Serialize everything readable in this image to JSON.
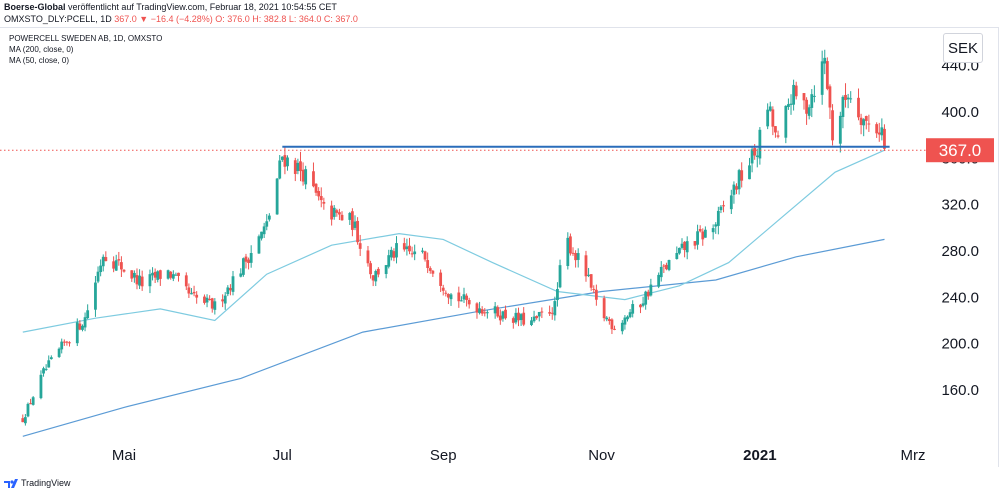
{
  "header": {
    "author": "Boerse-Global",
    "published": "veröffentlicht auf TradingView.com, Februar 18, 2021 10:54:55 CET",
    "symbol": "OMXSTO_DLY:PCELL, 1D",
    "last": "367.0",
    "change": "−16.4 (−4.28%)",
    "ohlc": "O: 376.0 H: 382.8 L: 364.0 C: 367.0"
  },
  "legend": {
    "title": "POWERCELL SWEDEN AB, 1D, OMXSTO",
    "ma200": "MA (200, close, 0)",
    "ma50": "MA (50, close, 0)"
  },
  "currency": "SEK",
  "footer": {
    "brand": "TradingView"
  },
  "colors": {
    "up": "#26a69a",
    "down": "#ef5350",
    "ma50": "#7ecbe0",
    "ma200": "#5b9bd5",
    "resistance": "#2a6dba",
    "last_line": "#ef5350"
  },
  "chart_data": {
    "type": "candlestick",
    "title": "POWERCELL SWEDEN AB, 1D, OMXSTO",
    "currency": "SEK",
    "y_ticks": [
      "160.0",
      "200.0",
      "240.0",
      "280.0",
      "320.0",
      "360.0",
      "400.0",
      "440.0"
    ],
    "ylim": [
      112,
      455
    ],
    "x_labels": [
      {
        "label": "Mai",
        "date": "2020-05-01"
      },
      {
        "label": "Jul",
        "date": "2020-07-01"
      },
      {
        "label": "Sep",
        "date": "2020-09-01"
      },
      {
        "label": "Nov",
        "date": "2020-11-01"
      },
      {
        "label": "2021",
        "date": "2021-01-01"
      },
      {
        "label": "Mrz",
        "date": "2021-03-01"
      }
    ],
    "last_price": 367.0,
    "last_label": "367.0",
    "resistance": {
      "value": 370,
      "from": "2020-07-01",
      "to": "2021-02-20"
    },
    "close_path": [
      [
        "2020-03-23",
        135
      ],
      [
        "2020-03-31",
        175
      ],
      [
        "2020-04-08",
        200
      ],
      [
        "2020-04-16",
        222
      ],
      [
        "2020-04-23",
        278
      ],
      [
        "2020-04-29",
        268
      ],
      [
        "2020-05-08",
        252
      ],
      [
        "2020-05-18",
        262
      ],
      [
        "2020-05-27",
        240
      ],
      [
        "2020-06-05",
        232
      ],
      [
        "2020-06-15",
        265
      ],
      [
        "2020-06-25",
        302
      ],
      [
        "2020-07-01",
        362
      ],
      [
        "2020-07-09",
        348
      ],
      [
        "2020-07-17",
        315
      ],
      [
        "2020-07-28",
        305
      ],
      [
        "2020-08-05",
        258
      ],
      [
        "2020-08-14",
        280
      ],
      [
        "2020-08-25",
        275
      ],
      [
        "2020-09-04",
        242
      ],
      [
        "2020-09-14",
        232
      ],
      [
        "2020-09-24",
        225
      ],
      [
        "2020-10-05",
        218
      ],
      [
        "2020-10-14",
        232
      ],
      [
        "2020-10-16",
        262
      ],
      [
        "2020-10-19",
        288
      ],
      [
        "2020-10-26",
        260
      ],
      [
        "2020-10-31",
        228
      ],
      [
        "2020-11-06",
        215
      ],
      [
        "2020-11-16",
        235
      ],
      [
        "2020-11-24",
        262
      ],
      [
        "2020-12-04",
        285
      ],
      [
        "2020-12-14",
        300
      ],
      [
        "2020-12-23",
        338
      ],
      [
        "2020-12-31",
        368
      ],
      [
        "2021-01-04",
        405
      ],
      [
        "2021-01-08",
        372
      ],
      [
        "2021-01-13",
        415
      ],
      [
        "2021-01-19",
        405
      ],
      [
        "2021-01-26",
        445
      ],
      [
        "2021-01-29",
        380
      ],
      [
        "2021-02-04",
        418
      ],
      [
        "2021-02-11",
        390
      ],
      [
        "2021-02-17",
        385
      ],
      [
        "2021-02-18",
        367
      ]
    ],
    "ma50": [
      [
        "2020-03-23",
        210
      ],
      [
        "2020-04-20",
        222
      ],
      [
        "2020-05-15",
        230
      ],
      [
        "2020-06-05",
        220
      ],
      [
        "2020-06-25",
        260
      ],
      [
        "2020-07-20",
        285
      ],
      [
        "2020-08-15",
        295
      ],
      [
        "2020-09-01",
        290
      ],
      [
        "2020-09-20",
        270
      ],
      [
        "2020-10-15",
        245
      ],
      [
        "2020-11-10",
        238
      ],
      [
        "2020-12-01",
        250
      ],
      [
        "2020-12-20",
        270
      ],
      [
        "2021-01-10",
        310
      ],
      [
        "2021-01-30",
        348
      ],
      [
        "2021-02-18",
        367
      ]
    ],
    "ma200": [
      [
        "2020-03-23",
        120
      ],
      [
        "2020-05-01",
        145
      ],
      [
        "2020-06-15",
        170
      ],
      [
        "2020-08-01",
        210
      ],
      [
        "2020-09-15",
        228
      ],
      [
        "2020-11-01",
        245
      ],
      [
        "2020-12-15",
        255
      ],
      [
        "2021-01-15",
        275
      ],
      [
        "2021-02-18",
        290
      ]
    ]
  }
}
